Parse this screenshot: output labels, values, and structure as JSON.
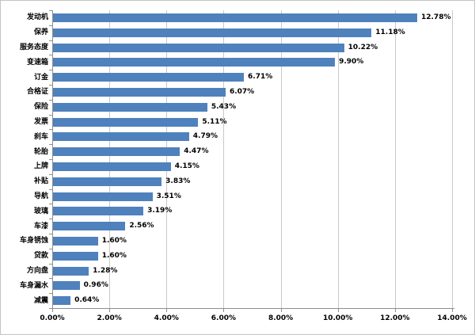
{
  "chart_data": {
    "type": "bar",
    "orientation": "horizontal",
    "title": "",
    "xlabel": "",
    "ylabel": "",
    "categories": [
      "发动机",
      "保养",
      "服务态度",
      "变速箱",
      "订金",
      "合格证",
      "保险",
      "发票",
      "刹车",
      "轮胎",
      "上牌",
      "补贴",
      "导航",
      "玻璃",
      "车漆",
      "车身锈蚀",
      "贷款",
      "方向盘",
      "车身漏水",
      "减震"
    ],
    "values": [
      12.78,
      11.18,
      10.22,
      9.9,
      6.71,
      6.07,
      5.43,
      5.11,
      4.79,
      4.47,
      4.15,
      3.83,
      3.51,
      3.19,
      2.56,
      1.6,
      1.6,
      1.28,
      0.96,
      0.64
    ],
    "value_labels": [
      "12.78%",
      "11.18%",
      "10.22%",
      "9.90%",
      "6.71%",
      "6.07%",
      "5.43%",
      "5.11%",
      "4.79%",
      "4.47%",
      "4.15%",
      "3.83%",
      "3.51%",
      "3.19%",
      "2.56%",
      "1.60%",
      "1.60%",
      "1.28%",
      "0.96%",
      "0.64%"
    ],
    "x_ticks": [
      "0.00%",
      "2.00%",
      "4.00%",
      "6.00%",
      "8.00%",
      "10.00%",
      "12.00%",
      "14.00%"
    ],
    "xlim": [
      0,
      14
    ],
    "grid": true,
    "legend": "none",
    "colors": {
      "bar": "#4F81BD",
      "gridline": "#C9C9C9",
      "axis": "#8E8E8E",
      "text": "#000000",
      "chart_border": "#C3C3C3",
      "background": "#FFFFFF"
    }
  }
}
